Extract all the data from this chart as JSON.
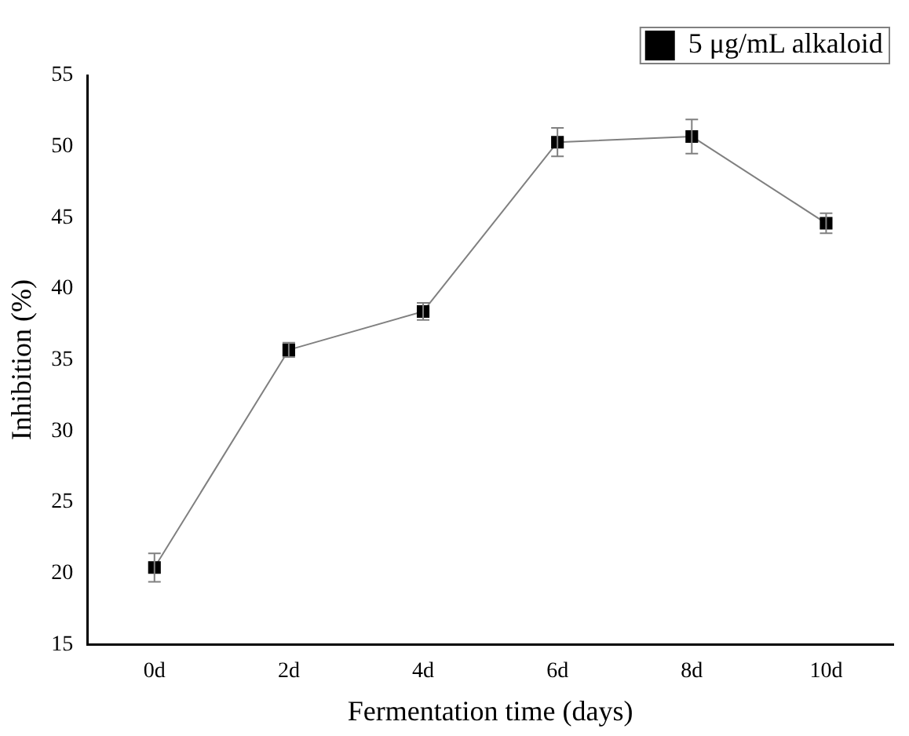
{
  "chart_data": {
    "type": "line",
    "xlabel": "Fermentation time (days)",
    "ylabel": "Inhibition (%)",
    "categories": [
      "0d",
      "2d",
      "4d",
      "6d",
      "8d",
      "10d"
    ],
    "series": [
      {
        "name": "5 μg/mL alkaloid",
        "color": "#000000",
        "values": [
          20.4,
          35.7,
          38.4,
          50.3,
          50.7,
          44.6
        ],
        "errors": [
          1.0,
          0.5,
          0.6,
          1.0,
          1.2,
          0.7
        ]
      }
    ],
    "ylim": [
      15,
      55
    ],
    "yticks": [
      15,
      20,
      25,
      30,
      35,
      40,
      45,
      50,
      55
    ],
    "grid": false,
    "legend": "top right",
    "marker": "square",
    "line_style": "solid"
  }
}
